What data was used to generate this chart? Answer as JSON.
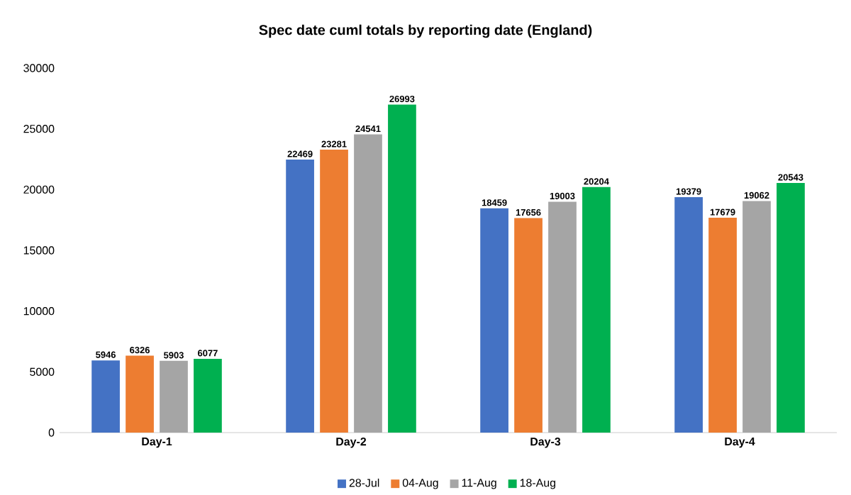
{
  "chart_data": {
    "type": "bar",
    "title": "Spec date cuml totals by reporting date (England)",
    "categories": [
      "Day-1",
      "Day-2",
      "Day-3",
      "Day-4"
    ],
    "series": [
      {
        "name": "28-Jul",
        "color": "#4472c4",
        "values": [
          5946,
          22469,
          18459,
          19379
        ]
      },
      {
        "name": "04-Aug",
        "color": "#ed7d31",
        "values": [
          6326,
          23281,
          17656,
          17679
        ]
      },
      {
        "name": "11-Aug",
        "color": "#a5a5a5",
        "values": [
          5903,
          24541,
          19003,
          19062
        ]
      },
      {
        "name": "18-Aug",
        "color": "#00b050",
        "values": [
          6077,
          26993,
          20204,
          20543
        ]
      }
    ],
    "ylim": [
      0,
      30000
    ],
    "yticks": [
      0,
      5000,
      10000,
      15000,
      20000,
      25000,
      30000
    ],
    "data_labels": true,
    "legend": "bottom"
  }
}
